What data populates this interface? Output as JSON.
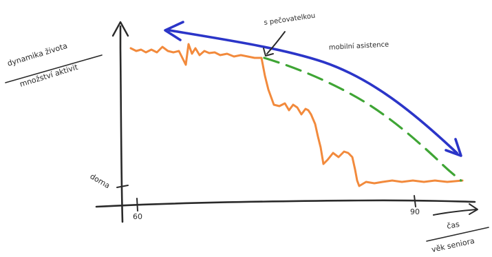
{
  "labels": {
    "y_top": "dynamika života",
    "y_bottom": "množství aktivit",
    "x_top": "čas",
    "x_bottom": "věk seniora",
    "home": "doma",
    "tick_start": "60",
    "tick_end": "90",
    "point_annotation": "s pečovatelkou",
    "arrow_annotation": "mobilní asistence"
  },
  "colors": {
    "ink": "#2a2a2a",
    "decline": "#f28a3c",
    "with_assistance": "#3fa535",
    "arrow": "#2b35c8"
  }
}
